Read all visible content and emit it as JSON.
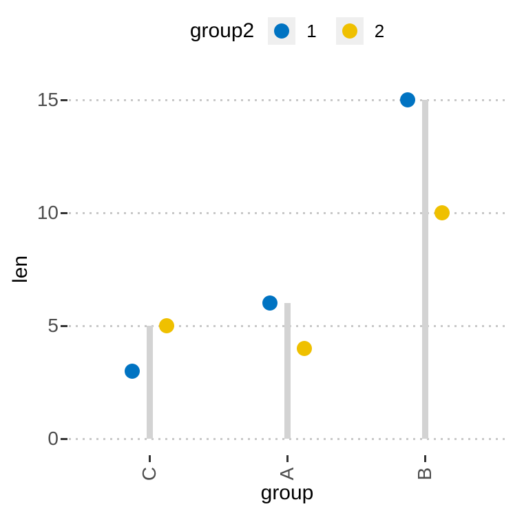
{
  "chart_data": {
    "type": "scatter",
    "variant": "dodged-lollipop-dot-chart",
    "title": "",
    "xlabel": "group",
    "ylabel": "len",
    "categories": [
      "C",
      "A",
      "B"
    ],
    "series": [
      {
        "name": "1",
        "color": "#0073C2",
        "values": [
          3,
          6,
          15
        ]
      },
      {
        "name": "2",
        "color": "#EFC000",
        "values": [
          5,
          4,
          10
        ]
      }
    ],
    "segments": {
      "from": 0,
      "values": [
        5,
        6,
        15
      ],
      "color": "#D3D3D3"
    },
    "yticks": [
      0,
      5,
      10,
      15
    ],
    "ylim": [
      0,
      15
    ],
    "grid": {
      "axis": "y",
      "style": "dotted",
      "color": "#C8C8C8"
    },
    "legend": {
      "position": "top",
      "title": "group2",
      "key_background": "#EFEFEF"
    },
    "colors": {
      "tick_mark": "#333333",
      "tick_label": "#4D4D4D",
      "axis_title": "#000000",
      "background": "#FFFFFF"
    }
  }
}
